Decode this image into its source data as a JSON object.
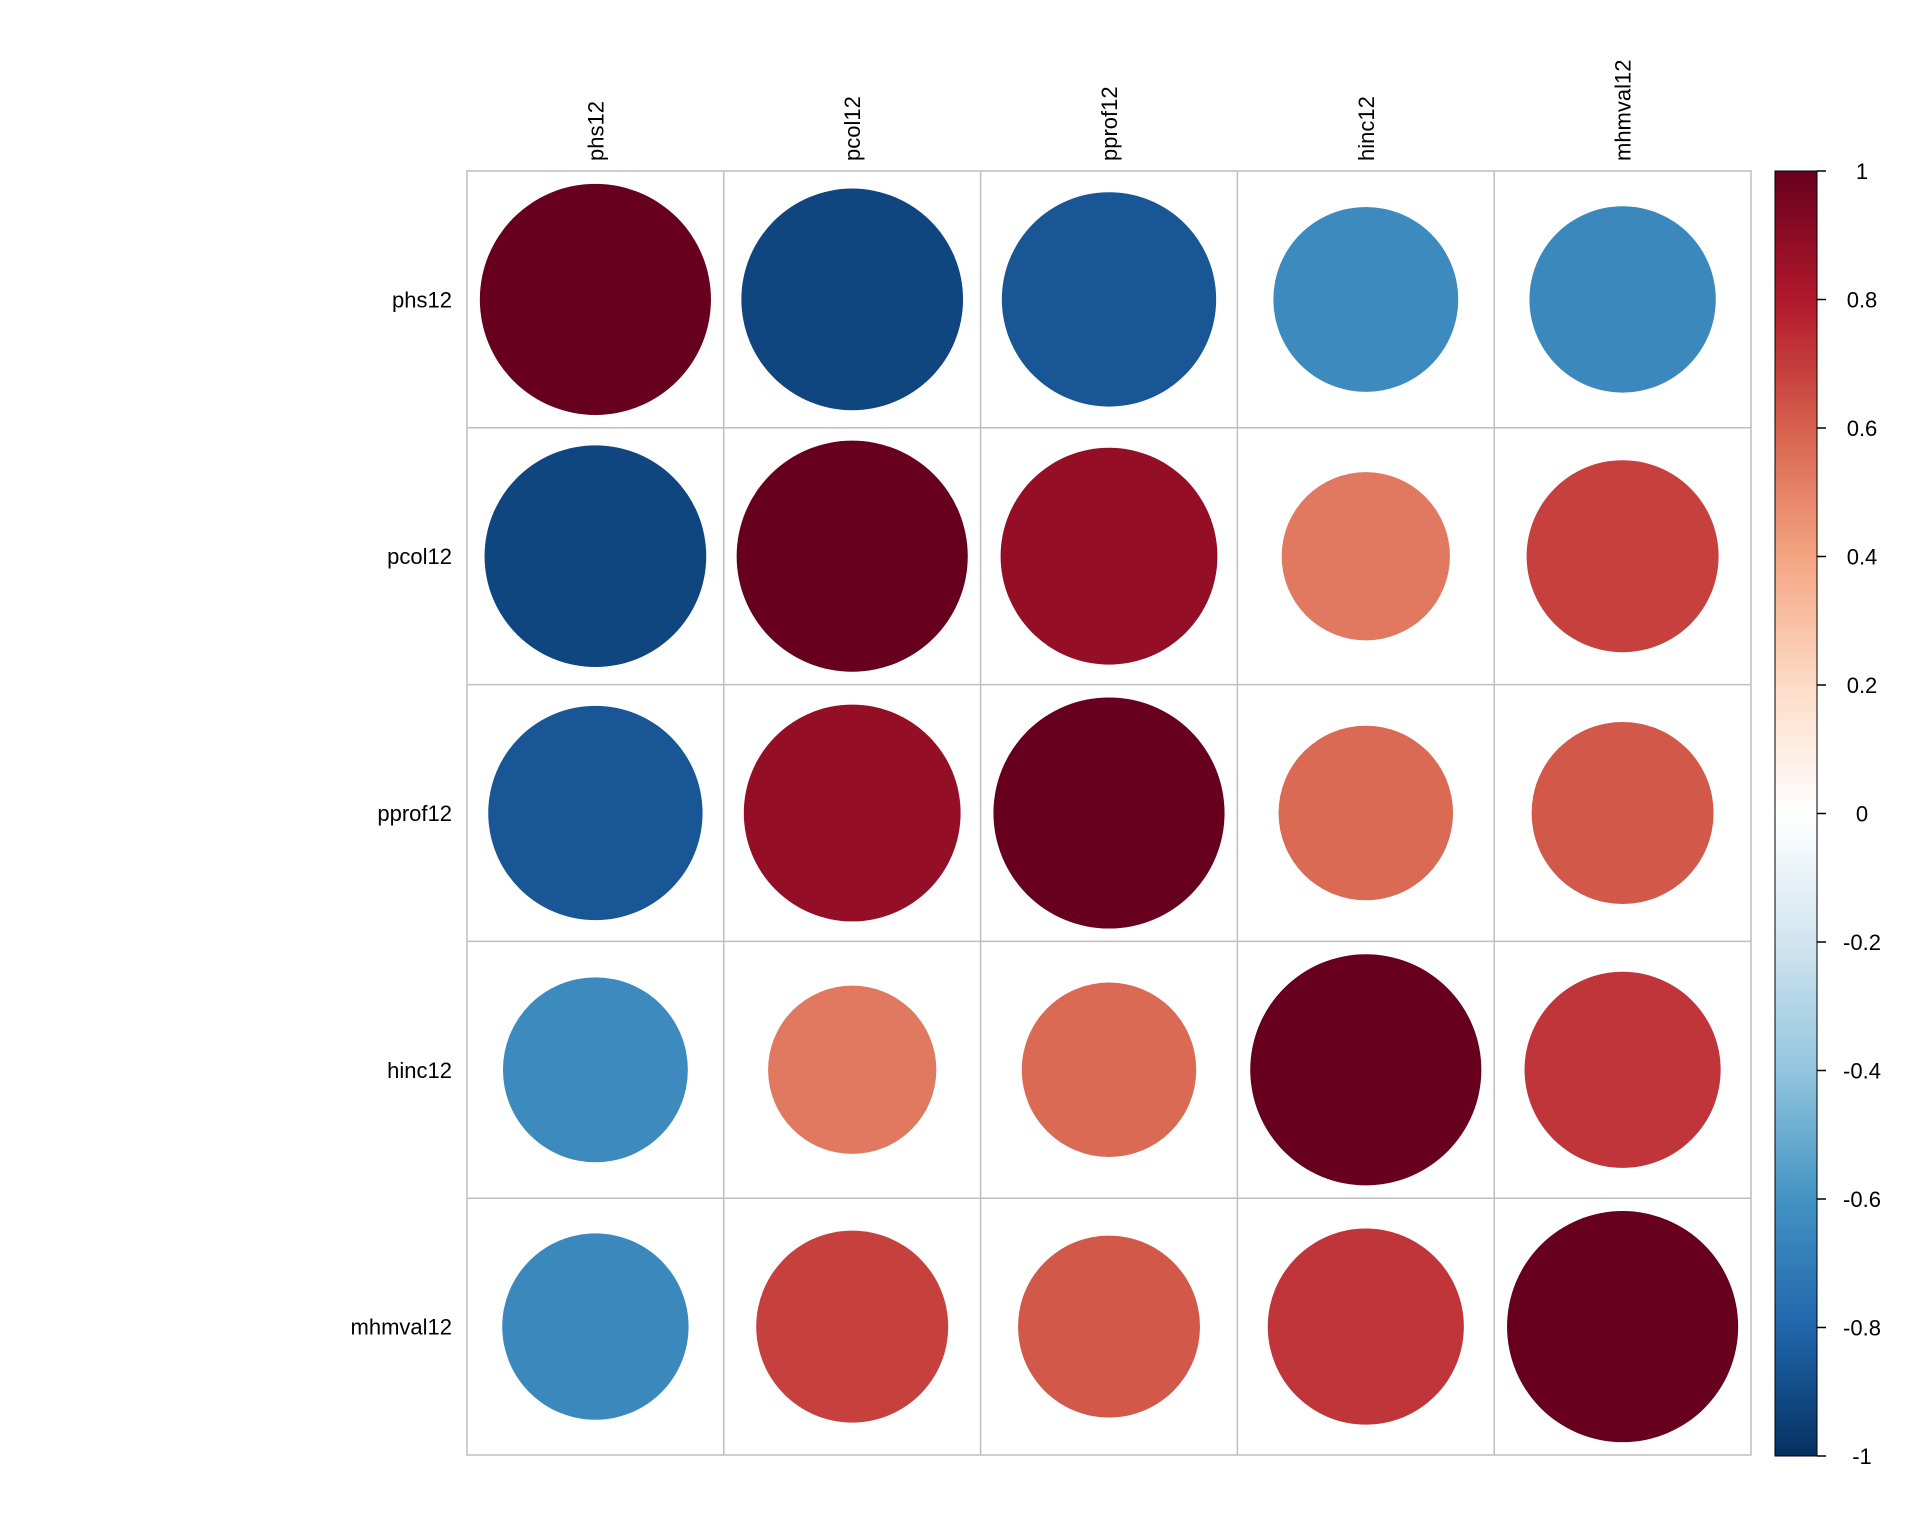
{
  "chart_data": {
    "type": "heatmap",
    "subtype": "correlation-circle-matrix",
    "title": "",
    "variables": [
      "phs12",
      "pcol12",
      "pprof12",
      "hinc12",
      "mhmval12"
    ],
    "matrix": [
      [
        1.0,
        -0.92,
        -0.86,
        -0.64,
        -0.65
      ],
      [
        -0.92,
        1.0,
        0.88,
        0.53,
        0.69
      ],
      [
        -0.86,
        0.88,
        1.0,
        0.57,
        0.62
      ],
      [
        -0.64,
        0.53,
        0.57,
        1.0,
        0.72
      ],
      [
        -0.65,
        0.69,
        0.62,
        0.72,
        1.0
      ]
    ],
    "colorbar": {
      "range": [
        -1,
        1
      ],
      "ticks": [
        "1",
        "0.8",
        "0.6",
        "0.4",
        "0.2",
        "0",
        "-0.2",
        "-0.4",
        "-0.6",
        "-0.8",
        "-1"
      ],
      "tick_values": [
        1,
        0.8,
        0.6,
        0.4,
        0.2,
        0,
        -0.2,
        -0.4,
        -0.6,
        -0.8,
        -1
      ],
      "colors": [
        "#67001F",
        "#B2182B",
        "#D6604D",
        "#F4A582",
        "#FDDBC7",
        "#FFFFFF",
        "#D1E5F0",
        "#92C5DE",
        "#4393C3",
        "#2166AC",
        "#053061"
      ]
    },
    "grid": true,
    "legend_position": "right"
  }
}
